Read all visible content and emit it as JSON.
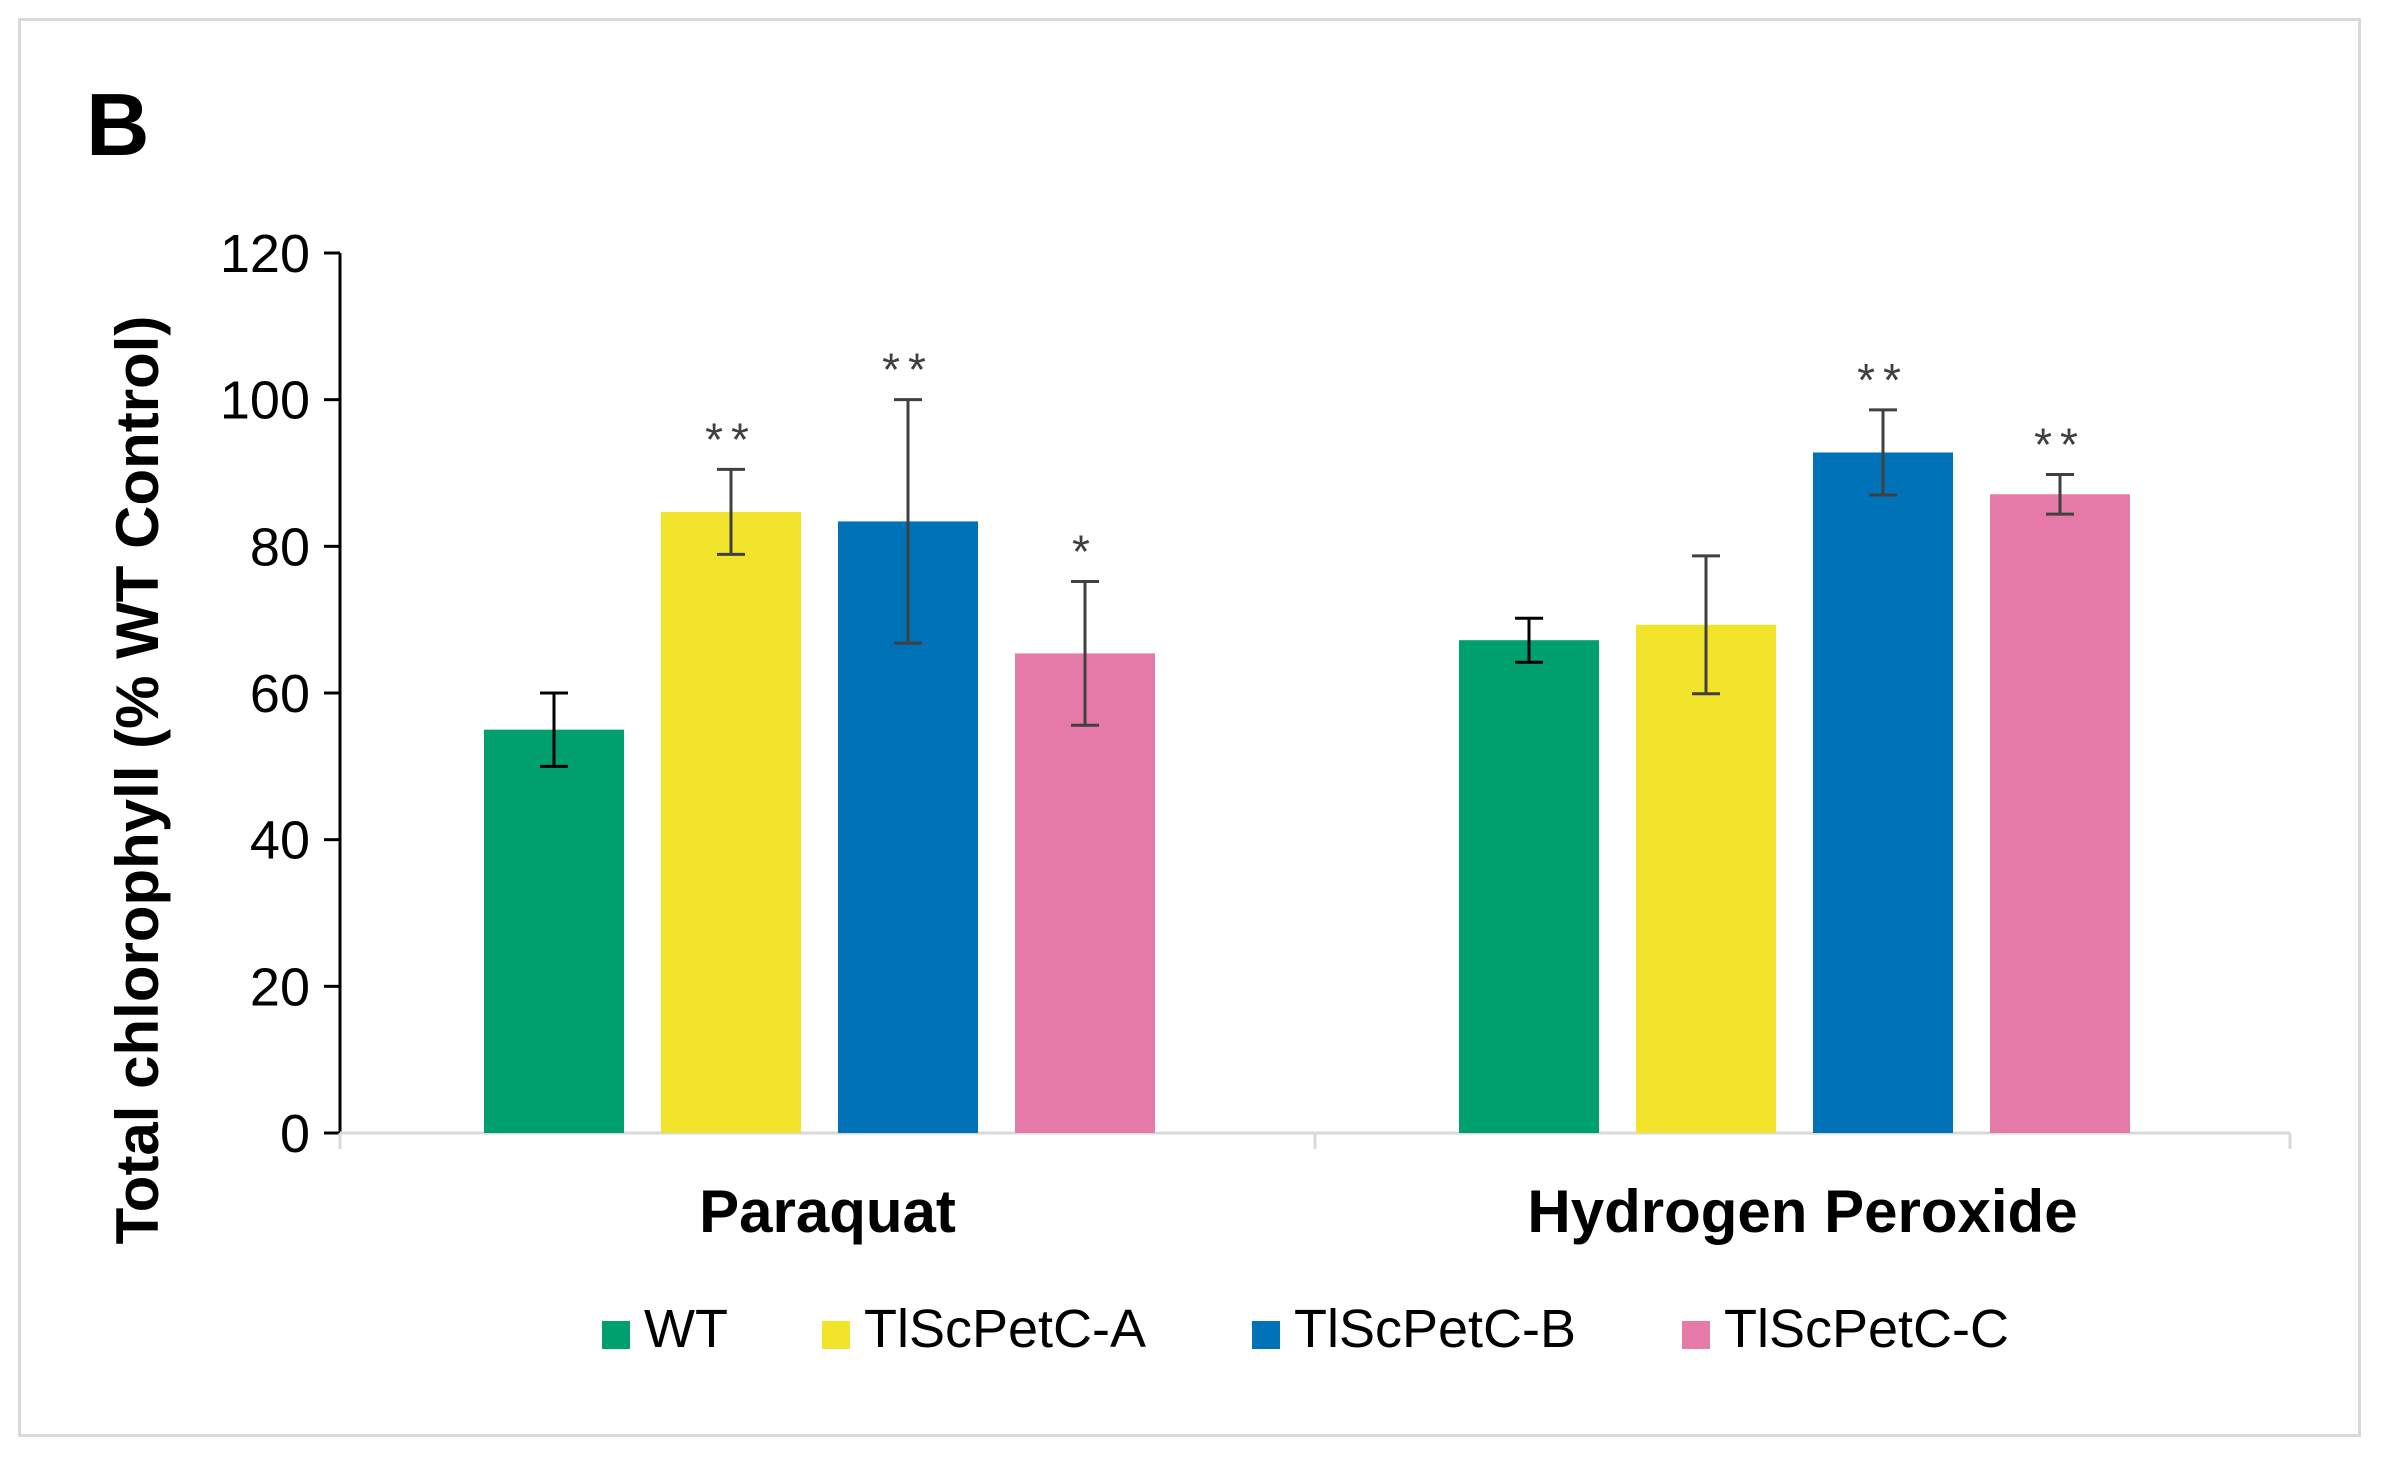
{
  "panel_label": "B",
  "chart_data": {
    "type": "bar",
    "title": "",
    "xlabel": "",
    "ylabel": "Total chlorophyll (% WT Control)",
    "ylim": [
      0,
      120
    ],
    "yticks": [
      0,
      20,
      40,
      60,
      80,
      100,
      120
    ],
    "grid": false,
    "legend_position": "bottom",
    "categories": [
      "Paraquat",
      "Hydrogen Peroxide"
    ],
    "series": [
      {
        "name": "WT",
        "color": "#00A06E",
        "values": [
          55,
          67.2
        ],
        "errors": [
          5,
          3
        ],
        "significance": [
          "",
          ""
        ]
      },
      {
        "name": "TlScPetC-A",
        "color": "#F2E32B",
        "values": [
          84.7,
          69.3
        ],
        "errors": [
          5.8,
          9.4
        ],
        "significance": [
          "**",
          ""
        ]
      },
      {
        "name": "TlScPetC-B",
        "color": "#0072B8",
        "values": [
          83.4,
          92.8
        ],
        "errors": [
          16.6,
          5.8
        ],
        "significance": [
          "**",
          "**"
        ]
      },
      {
        "name": "TlScPetC-C",
        "color": "#E57AA8",
        "values": [
          65.4,
          87.1
        ],
        "errors": [
          9.8,
          2.7
        ],
        "significance": [
          "*",
          "**"
        ]
      }
    ]
  }
}
